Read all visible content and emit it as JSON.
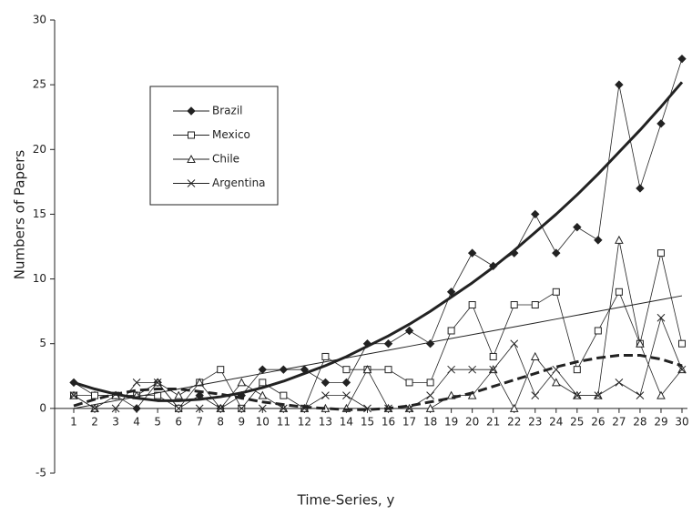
{
  "chart_data": {
    "type": "line",
    "x_label": "Time-Series, y",
    "y_label": "Numbers of Papers",
    "categories": [
      "1",
      "2",
      "3",
      "4",
      "5",
      "6",
      "7",
      "8",
      "9",
      "10",
      "11",
      "12",
      "13",
      "14",
      "15",
      "16",
      "17",
      "18",
      "19",
      "20",
      "21",
      "22",
      "23",
      "24",
      "25",
      "26",
      "27",
      "28",
      "29",
      "30"
    ],
    "ylim": [
      -5,
      30
    ],
    "yticks": [
      -5,
      0,
      5,
      10,
      15,
      20,
      25,
      30
    ],
    "legend": "upper left",
    "series": [
      {
        "name": "Brazil",
        "color": "#222222",
        "marker": "diamond",
        "values": [
          2,
          1,
          1,
          0,
          2,
          0,
          1,
          0,
          1,
          3,
          3,
          3,
          2,
          2,
          5,
          5,
          6,
          5,
          9,
          12,
          11,
          12,
          15,
          12,
          14,
          13,
          25,
          17,
          22,
          27
        ]
      },
      {
        "name": "Mexico",
        "color": "#222222",
        "marker": "square",
        "values": [
          1,
          1,
          1,
          1,
          1,
          0,
          2,
          3,
          0,
          2,
          1,
          0,
          4,
          3,
          3,
          3,
          2,
          2,
          6,
          8,
          4,
          8,
          8,
          9,
          3,
          6,
          9,
          5,
          12,
          5
        ]
      },
      {
        "name": "Chile",
        "color": "#222222",
        "marker": "triangle",
        "values": [
          1,
          0,
          1,
          1,
          2,
          1,
          2,
          0,
          2,
          1,
          0,
          0,
          0,
          0,
          3,
          0,
          0,
          0,
          1,
          1,
          3,
          0,
          4,
          2,
          1,
          1,
          13,
          5,
          1,
          3
        ]
      },
      {
        "name": "Argentina",
        "color": "#222222",
        "marker": "x",
        "values": [
          1,
          0,
          0,
          2,
          2,
          0,
          0,
          0,
          0,
          0,
          0,
          0,
          1,
          1,
          0,
          0,
          0,
          1,
          3,
          3,
          3,
          5,
          1,
          3,
          1,
          1,
          2,
          1,
          7,
          3
        ]
      }
    ],
    "trendlines": [
      {
        "style": "solid",
        "width": 3,
        "values": [
          2.0,
          1.5,
          1.1,
          0.8,
          0.6,
          0.6,
          0.7,
          0.9,
          1.2,
          1.6,
          2.1,
          2.7,
          3.3,
          4.0,
          4.8,
          5.6,
          6.5,
          7.5,
          8.6,
          9.7,
          10.9,
          12.2,
          13.6,
          15.0,
          16.5,
          18.1,
          19.8,
          21.5,
          23.3,
          25.2
        ]
      },
      {
        "style": "solid",
        "width": 1,
        "values": [
          0,
          0.3,
          0.6,
          0.9,
          1.2,
          1.5,
          1.8,
          2.1,
          2.4,
          2.7,
          3.0,
          3.3,
          3.6,
          3.9,
          4.2,
          4.5,
          4.8,
          5.1,
          5.4,
          5.7,
          6.0,
          6.3,
          6.6,
          6.9,
          7.2,
          7.5,
          7.8,
          8.1,
          8.4,
          8.7
        ]
      },
      {
        "style": "dashed",
        "width": 3,
        "values": [
          0.2,
          0.7,
          1.1,
          1.4,
          1.5,
          1.5,
          1.3,
          1.1,
          0.8,
          0.5,
          0.3,
          0.1,
          0,
          -0.1,
          -0.1,
          0,
          0.2,
          0.5,
          0.8,
          1.2,
          1.7,
          2.2,
          2.7,
          3.2,
          3.6,
          3.9,
          4.1,
          4.1,
          3.8,
          3.3
        ]
      }
    ]
  }
}
